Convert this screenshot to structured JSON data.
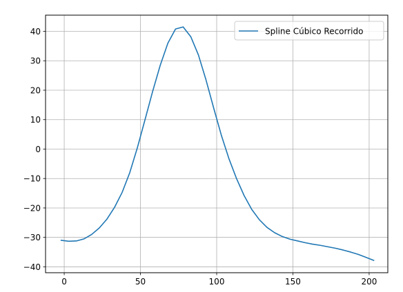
{
  "chart_data": {
    "type": "line",
    "title": "",
    "xlabel": "",
    "ylabel": "",
    "xlim": [
      -12.25,
      212.25
    ],
    "ylim": [
      -42.0,
      45.5
    ],
    "xticks": [
      0,
      50,
      100,
      150,
      200
    ],
    "yticks": [
      -40,
      -30,
      -20,
      -10,
      0,
      10,
      20,
      30,
      40
    ],
    "xtick_labels": [
      "0",
      "50",
      "100",
      "150",
      "200"
    ],
    "ytick_labels": [
      "−40",
      "−30",
      "−20",
      "−10",
      "0",
      "10",
      "20",
      "30",
      "40"
    ],
    "grid": true,
    "legend_position": "top-right",
    "series": [
      {
        "name": "Spline Cúbico Recorrido",
        "color": "#1f77b4",
        "x": [
          -2,
          3,
          8,
          13,
          18,
          23,
          28,
          33,
          38,
          43,
          48,
          53,
          58,
          63,
          68,
          73,
          78,
          83,
          88,
          93,
          98,
          103,
          108,
          113,
          118,
          123,
          128,
          133,
          138,
          143,
          148,
          153,
          158,
          163,
          168,
          173,
          178,
          183,
          188,
          193,
          198,
          203
        ],
        "y": [
          -31.0,
          -31.3,
          -31.2,
          -30.5,
          -29.0,
          -26.8,
          -23.8,
          -19.8,
          -14.7,
          -8.0,
          0.5,
          10.0,
          19.6,
          28.5,
          36.0,
          40.8,
          41.5,
          38.2,
          32.0,
          23.5,
          14.0,
          4.8,
          -3.2,
          -10.0,
          -15.8,
          -20.5,
          -24.0,
          -26.6,
          -28.4,
          -29.7,
          -30.6,
          -31.2,
          -31.8,
          -32.3,
          -32.7,
          -33.2,
          -33.7,
          -34.3,
          -35.0,
          -35.8,
          -36.8,
          -37.8
        ]
      }
    ]
  }
}
